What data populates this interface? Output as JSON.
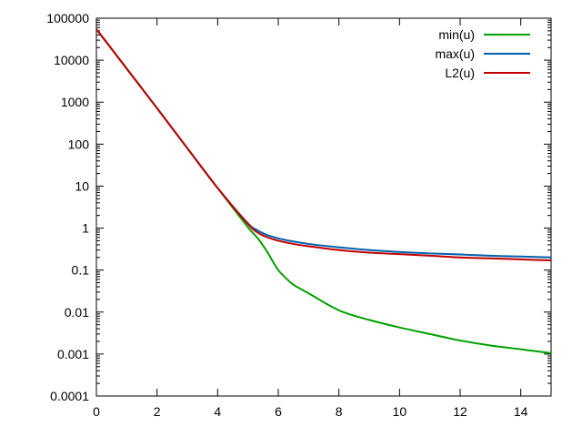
{
  "chart_data": {
    "type": "line",
    "title": "",
    "xlabel": "",
    "ylabel": "",
    "xlim": [
      0,
      15
    ],
    "ylim": [
      0.0001,
      100000
    ],
    "yscale": "log",
    "grid": false,
    "legend_position": "top-right",
    "xticks": [
      0,
      2,
      4,
      6,
      8,
      10,
      12,
      14
    ],
    "xtick_labels": [
      "0",
      "2",
      "4",
      "6",
      "8",
      "10",
      "12",
      "14"
    ],
    "yticks": [
      0.0001,
      0.001,
      0.01,
      0.1,
      1,
      10,
      100,
      1000,
      10000,
      100000
    ],
    "ytick_labels": [
      "0.0001",
      "0.001",
      "0.01",
      "0.1",
      "1",
      "10",
      "100",
      "1000",
      "10000",
      "100000"
    ],
    "series": [
      {
        "name": "min(u)",
        "color": "#00a000",
        "x": [
          0,
          1,
          2,
          3,
          4,
          5,
          5.3,
          5.6,
          5.8,
          6,
          6.2,
          6.5,
          7,
          8,
          9,
          10,
          11,
          12,
          13,
          14,
          15
        ],
        "y": [
          55000,
          6300,
          720,
          80,
          9,
          1.05,
          0.6,
          0.3,
          0.17,
          0.1,
          0.07,
          0.045,
          0.028,
          0.011,
          0.0065,
          0.0043,
          0.003,
          0.0021,
          0.0016,
          0.0013,
          0.00105
        ]
      },
      {
        "name": "max(u)",
        "color": "#0060ad",
        "x": [
          0,
          1,
          2,
          3,
          4,
          5,
          5.3,
          5.6,
          6,
          6.5,
          7,
          8,
          9,
          10,
          11,
          12,
          13,
          14,
          15
        ],
        "y": [
          55000,
          6300,
          720,
          80,
          9,
          1.3,
          0.9,
          0.7,
          0.57,
          0.48,
          0.42,
          0.35,
          0.3,
          0.27,
          0.25,
          0.235,
          0.22,
          0.21,
          0.2
        ]
      },
      {
        "name": "L2(u)",
        "color": "#c00000",
        "x": [
          0,
          1,
          2,
          3,
          4,
          5,
          5.3,
          5.6,
          6,
          6.5,
          7,
          8,
          9,
          10,
          11,
          12,
          13,
          14,
          15
        ],
        "y": [
          55000,
          6300,
          720,
          80,
          9,
          1.25,
          0.8,
          0.62,
          0.5,
          0.42,
          0.37,
          0.3,
          0.26,
          0.24,
          0.22,
          0.2,
          0.19,
          0.18,
          0.17
        ]
      }
    ]
  }
}
